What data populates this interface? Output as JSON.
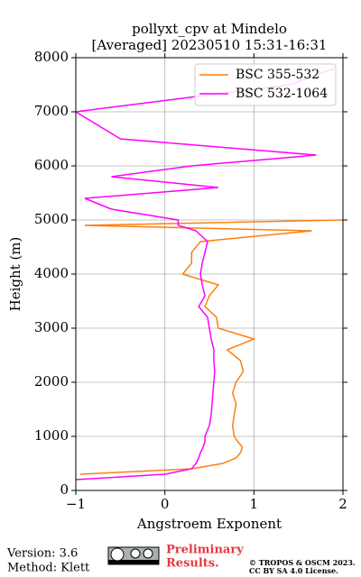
{
  "chart_data": {
    "type": "line",
    "title": "pollyxt_cpv at Mindelo",
    "subtitle": "[Averaged] 20230510 15:31-16:31",
    "x_label": "Angstroem Exponent",
    "y_label": "Height (m)",
    "y": [
      200,
      300,
      400,
      500,
      600,
      700,
      800,
      900,
      1000,
      1200,
      1400,
      1600,
      1800,
      2000,
      2200,
      2400,
      2600,
      2800,
      3000,
      3200,
      3400,
      3600,
      3800,
      4000,
      4200,
      4400,
      4600,
      4800,
      4900,
      5000,
      5200,
      5400,
      5600,
      5800,
      6000,
      6200,
      6500,
      7000,
      7500,
      7800
    ],
    "series": [
      {
        "name": "BSC 355-532",
        "color": "#ff7f0e",
        "values": [
          null,
          -0.95,
          0.3,
          0.65,
          0.8,
          0.85,
          0.87,
          0.82,
          0.78,
          0.76,
          0.78,
          0.8,
          0.76,
          0.8,
          0.88,
          0.85,
          0.7,
          1.0,
          0.6,
          0.58,
          0.45,
          0.5,
          0.6,
          0.2,
          0.3,
          0.3,
          0.4,
          1.65,
          -0.9,
          2.0,
          null,
          null,
          null,
          null,
          null,
          null,
          null,
          null,
          null,
          null
        ]
      },
      {
        "name": "BSC 532-1064",
        "color": "#ff00ff",
        "values": [
          -1,
          0.0,
          0.3,
          0.35,
          0.38,
          0.4,
          0.43,
          0.45,
          0.45,
          0.5,
          0.52,
          0.53,
          0.54,
          0.55,
          0.56,
          0.55,
          0.55,
          0.52,
          0.5,
          0.48,
          0.38,
          0.45,
          0.42,
          0.4,
          0.42,
          0.45,
          0.48,
          0.35,
          0.15,
          0.15,
          -0.6,
          -0.9,
          0.6,
          -0.6,
          0.3,
          1.7,
          -0.5,
          -1.0,
          1.4,
          1.9
        ]
      }
    ],
    "xlim": [
      -1,
      2
    ],
    "xticks": [
      {
        "value": -1,
        "label": "−1"
      },
      0,
      1,
      2
    ],
    "ylim": [
      0,
      8000
    ],
    "yticks": [
      0,
      1000,
      2000,
      3000,
      4000,
      5000,
      6000,
      7000,
      8000
    ],
    "grid": true,
    "legend": "upper right"
  },
  "footer": {
    "version": "Version: 3.6",
    "method": "Method: Klett",
    "preliminary": "Preliminary",
    "results": "Results.",
    "copyright": "© TROPOS & OSCM 2023.",
    "license": "CC BY SA 4.0 License."
  }
}
